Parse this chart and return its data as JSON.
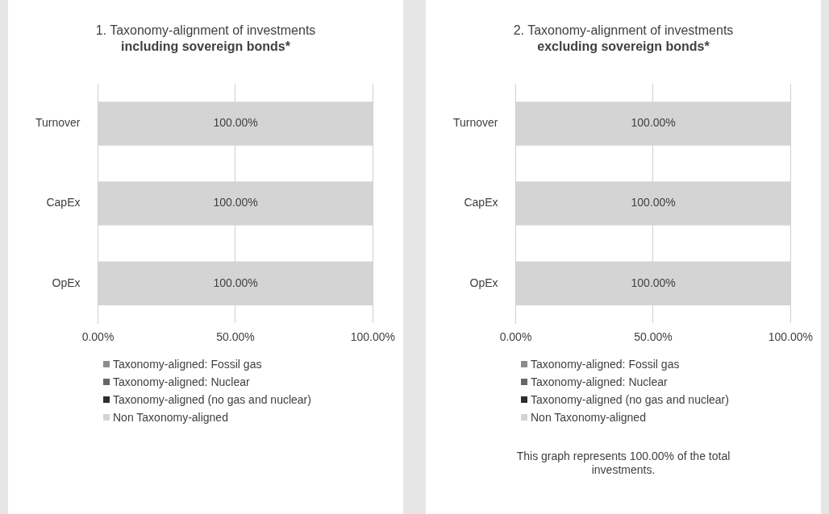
{
  "chart_data": [
    {
      "type": "bar",
      "title": "1. Taxonomy-alignment of investments",
      "subtitle": "including sovereign bonds*",
      "orientation": "horizontal",
      "stacked": true,
      "categories": [
        "Turnover",
        "CapEx",
        "OpEx"
      ],
      "series": [
        {
          "name": "Taxonomy-aligned: Fossil gas",
          "color": "#8c8c8c",
          "values": [
            0,
            0,
            0
          ],
          "value_labels": [
            null,
            null,
            null
          ]
        },
        {
          "name": "Taxonomy-aligned: Nuclear",
          "color": "#666666",
          "values": [
            0,
            0,
            0
          ],
          "value_labels": [
            null,
            null,
            null
          ]
        },
        {
          "name": "Taxonomy-aligned (no gas and nuclear)",
          "color": "#2e2e2e",
          "values": [
            0,
            0,
            0
          ],
          "value_labels": [
            null,
            null,
            null
          ]
        },
        {
          "name": "Non Taxonomy-aligned",
          "color": "#d4d4d4",
          "values": [
            100,
            100,
            100
          ],
          "value_labels": [
            "100.00%",
            "100.00%",
            "100.00%"
          ]
        }
      ],
      "xlim": [
        0,
        100
      ],
      "xticks": [
        {
          "value": 0,
          "label": "0.00%"
        },
        {
          "value": 50,
          "label": "50.00%"
        },
        {
          "value": 100,
          "label": "100.00%"
        }
      ],
      "grid": "x",
      "legend": "bottom"
    },
    {
      "type": "bar",
      "title": "2. Taxonomy-alignment of investments",
      "subtitle": "excluding sovereign bonds*",
      "orientation": "horizontal",
      "stacked": true,
      "categories": [
        "Turnover",
        "CapEx",
        "OpEx"
      ],
      "series": [
        {
          "name": "Taxonomy-aligned: Fossil gas",
          "color": "#8c8c8c",
          "values": [
            0,
            0,
            0
          ],
          "value_labels": [
            null,
            null,
            null
          ]
        },
        {
          "name": "Taxonomy-aligned: Nuclear",
          "color": "#666666",
          "values": [
            0,
            0,
            0
          ],
          "value_labels": [
            null,
            null,
            null
          ]
        },
        {
          "name": "Taxonomy-aligned (no gas and nuclear)",
          "color": "#2e2e2e",
          "values": [
            0,
            0,
            0
          ],
          "value_labels": [
            null,
            null,
            null
          ]
        },
        {
          "name": "Non Taxonomy-aligned",
          "color": "#d4d4d4",
          "values": [
            100,
            100,
            100
          ],
          "value_labels": [
            "100.00%",
            "100.00%",
            "100.00%"
          ]
        }
      ],
      "xlim": [
        0,
        100
      ],
      "xticks": [
        {
          "value": 0,
          "label": "0.00%"
        },
        {
          "value": 50,
          "label": "50.00%"
        },
        {
          "value": 100,
          "label": "100.00%"
        }
      ],
      "grid": "x",
      "legend": "bottom",
      "annotations": [
        "This graph represents 100.00% of the total investments."
      ]
    }
  ]
}
